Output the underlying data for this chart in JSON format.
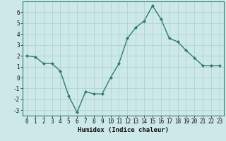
{
  "xlabel": "Humidex (Indice chaleur)",
  "x": [
    0,
    1,
    2,
    3,
    4,
    5,
    6,
    7,
    8,
    9,
    10,
    11,
    12,
    13,
    14,
    15,
    16,
    17,
    18,
    19,
    20,
    21,
    22,
    23
  ],
  "y": [
    2.0,
    1.9,
    1.3,
    1.3,
    0.6,
    -1.7,
    -3.2,
    -1.3,
    -1.5,
    -1.5,
    0.0,
    1.3,
    3.6,
    4.6,
    5.2,
    6.6,
    5.4,
    3.6,
    3.3,
    2.5,
    1.8,
    1.1,
    1.1,
    1.1
  ],
  "line_color": "#2e7d6e",
  "marker": "D",
  "marker_size": 2.0,
  "bg_color": "#cde8e8",
  "grid_color": "#aacfcf",
  "ylim": [
    -3.5,
    7.0
  ],
  "yticks": [
    -3,
    -2,
    -1,
    0,
    1,
    2,
    3,
    4,
    5,
    6
  ],
  "xticks": [
    0,
    1,
    2,
    3,
    4,
    5,
    6,
    7,
    8,
    9,
    10,
    11,
    12,
    13,
    14,
    15,
    16,
    17,
    18,
    19,
    20,
    21,
    22,
    23
  ],
  "tick_label_fontsize": 5.5,
  "xlabel_fontsize": 6.5,
  "line_width": 1.0,
  "spine_color": "#2e7d6e"
}
